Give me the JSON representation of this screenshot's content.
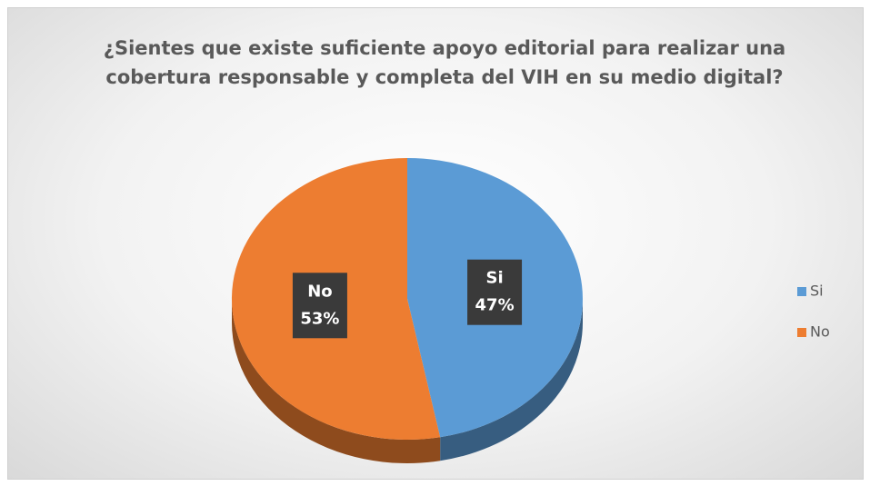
{
  "chart_data": {
    "type": "pie",
    "title": "¿Sientes que existe suficiente apoyo editorial para realizar una cobertura responsable y completa del VIH en su medio digital?",
    "categories": [
      "Si",
      "No"
    ],
    "values": [
      47,
      53
    ],
    "value_labels": [
      "47%",
      "53%"
    ],
    "colors": [
      "#5b9bd5",
      "#ed7d31"
    ],
    "legend": "right"
  }
}
